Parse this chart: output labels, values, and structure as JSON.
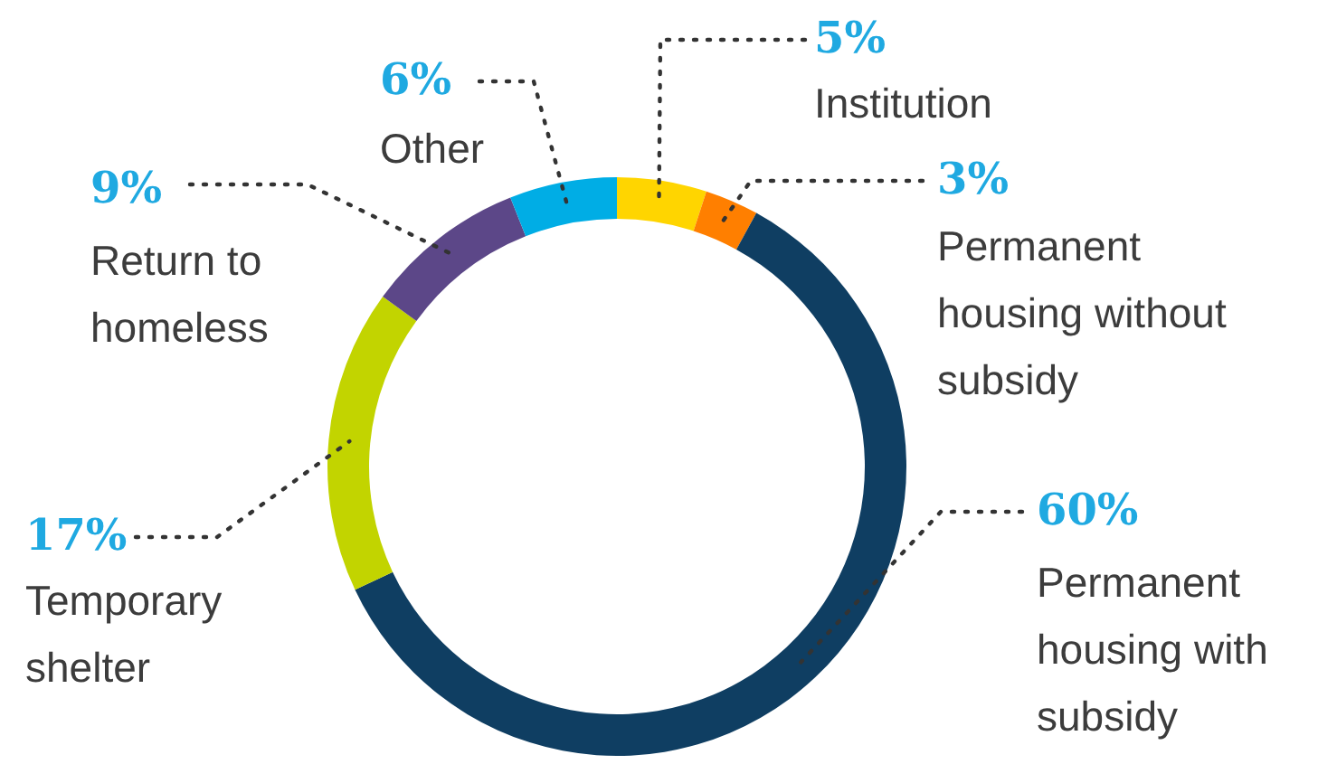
{
  "chart_data": {
    "type": "donut",
    "categories": [
      "Institution",
      "Permanent housing without subsidy",
      "Permanent housing with subsidy",
      "Temporary shelter",
      "Return to homeless",
      "Other"
    ],
    "values": [
      5,
      3,
      60,
      17,
      9,
      6
    ],
    "value_labels": [
      "5%",
      "3%",
      "60%",
      "17%",
      "9%",
      "6%"
    ],
    "colors": [
      "#ffd500",
      "#ff7f00",
      "#0f3e62",
      "#c2d400",
      "#5c4788",
      "#00ade5"
    ]
  }
}
